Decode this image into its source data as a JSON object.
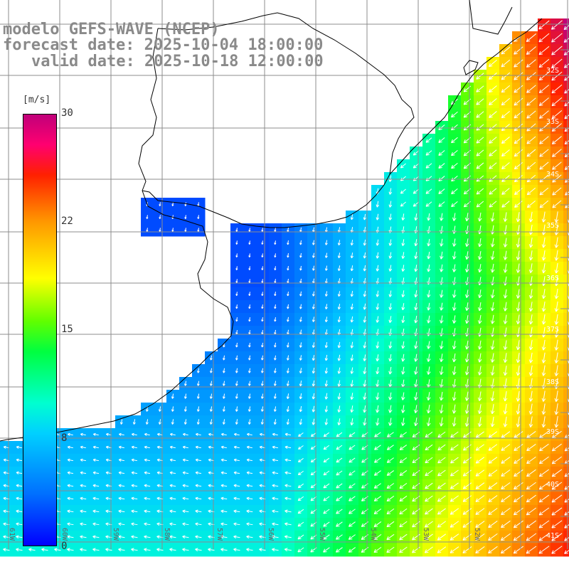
{
  "title": {
    "line1": "modelo GEFS-WAVE (NCEP)",
    "line2": "forecast date: 2025-10-04 18:00:00",
    "line3": "valid date: 2025-10-18 12:00:00"
  },
  "colorbar": {
    "unit": "[m/s]",
    "ticks": [
      "30",
      "22",
      "15",
      "8",
      "0"
    ],
    "tick_values": [
      30,
      22,
      15,
      8,
      0
    ],
    "range": [
      0,
      30
    ],
    "colors": [
      "#0000ff",
      "#00d0ff",
      "#00ffd0",
      "#00ff40",
      "#ffff00",
      "#ff9900",
      "#ff2000",
      "#c0007a"
    ]
  },
  "lat_labels": [
    "32S",
    "33S",
    "34S",
    "35S",
    "36S",
    "37S",
    "38S",
    "39S",
    "40S",
    "41S"
  ],
  "lon_labels": [
    "61W",
    "60W",
    "59W",
    "58W",
    "57W",
    "56W",
    "55W",
    "54W",
    "53W",
    "52W"
  ],
  "colors": {
    "land": "#ffffff",
    "grid": "#8c8c8c",
    "coast": "#000000",
    "arrow": "#ffffff",
    "title": "#8a8a8a"
  }
}
